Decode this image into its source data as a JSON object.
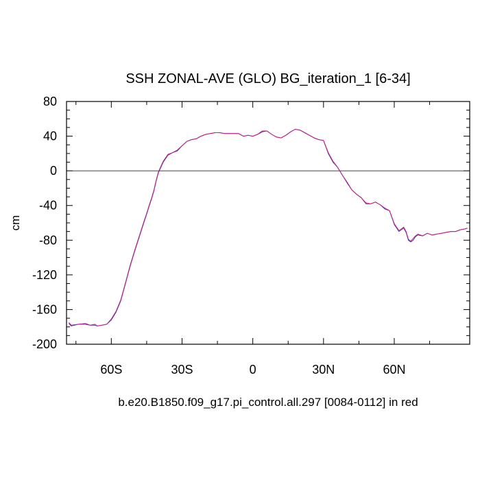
{
  "chart_data": {
    "type": "line",
    "title": "SSH ZONAL-AVE (GLO) BG_iteration_1 [6-34]",
    "subtitle": "b.e20.B1850.f09_g17.pi_control.all.297 [0084-0112] in red",
    "ylabel": "cm",
    "xlabel": "",
    "xlim": [
      -79,
      92
    ],
    "ylim": [
      -200,
      80
    ],
    "x_ticks": [
      {
        "value": -60,
        "label": "60S"
      },
      {
        "value": -30,
        "label": "30S"
      },
      {
        "value": 0,
        "label": "0"
      },
      {
        "value": 30,
        "label": "30N"
      },
      {
        "value": 60,
        "label": "60N"
      }
    ],
    "y_ticks": [
      {
        "value": 80,
        "label": "80"
      },
      {
        "value": 40,
        "label": "40"
      },
      {
        "value": 0,
        "label": "0"
      },
      {
        "value": -40,
        "label": "-40"
      },
      {
        "value": -80,
        "label": "-80"
      },
      {
        "value": -120,
        "label": "-120"
      },
      {
        "value": -160,
        "label": "-160"
      },
      {
        "value": -200,
        "label": "-200"
      }
    ],
    "reference_line": 0,
    "series": [
      {
        "color": "#3a3ad0",
        "x": [
          -78,
          -77,
          -74,
          -71,
          -69,
          -67,
          -66,
          -64,
          -62,
          -60,
          -58,
          -56,
          -54,
          -52,
          -50,
          -48,
          -46,
          -45,
          -44,
          -43,
          -42,
          -41,
          -40,
          -38,
          -36,
          -34,
          -32,
          -30,
          -28,
          -26,
          -24,
          -22,
          -20,
          -18,
          -16,
          -14,
          -12,
          -10,
          -8,
          -6,
          -4,
          -2,
          0,
          2,
          4,
          6,
          8,
          10,
          12,
          14,
          16,
          18,
          20,
          22,
          24,
          26,
          28,
          30,
          32,
          34,
          36,
          38,
          40,
          42,
          44,
          46,
          48,
          50,
          52,
          54,
          56,
          58,
          60,
          62,
          64,
          65,
          66,
          67,
          68,
          69,
          70,
          72,
          74,
          76,
          78,
          80,
          82,
          84,
          86,
          88,
          90,
          91
        ],
        "y": [
          -176,
          -179,
          -177,
          -177,
          -178,
          -178,
          -179,
          -178,
          -177,
          -172,
          -163,
          -150,
          -130,
          -110,
          -92,
          -75,
          -58,
          -50,
          -41,
          -33,
          -24,
          -12,
          -2,
          10,
          18,
          21,
          23,
          29,
          34,
          36,
          37,
          40,
          42,
          43,
          44,
          44,
          43,
          43,
          43,
          43,
          40,
          41,
          40,
          42,
          45,
          46,
          42,
          39,
          38,
          41,
          45,
          48,
          47,
          44,
          41,
          38,
          36,
          35,
          20,
          10,
          4,
          -5,
          -14,
          -22,
          -27,
          -31,
          -38,
          -38,
          -36,
          -39,
          -44,
          -46,
          -62,
          -70,
          -66,
          -71,
          -80,
          -82,
          -80,
          -76,
          -74,
          -75,
          -72,
          -74,
          -73,
          -72,
          -71,
          -70,
          -70,
          -68,
          -67,
          -66
        ]
      },
      {
        "color": "#d2147a",
        "x": [
          -78,
          -77,
          -74,
          -71,
          -69,
          -67,
          -66,
          -64,
          -62,
          -60,
          -58,
          -56,
          -54,
          -52,
          -50,
          -48,
          -46,
          -45,
          -44,
          -43,
          -42,
          -41,
          -40,
          -38,
          -36,
          -34,
          -32,
          -30,
          -28,
          -26,
          -24,
          -22,
          -20,
          -18,
          -16,
          -14,
          -12,
          -10,
          -8,
          -6,
          -4,
          -2,
          0,
          2,
          4,
          6,
          8,
          10,
          12,
          14,
          16,
          18,
          20,
          22,
          24,
          26,
          28,
          30,
          32,
          34,
          36,
          38,
          40,
          42,
          44,
          46,
          48,
          50,
          52,
          54,
          56,
          58,
          60,
          62,
          64,
          65,
          66,
          67,
          68,
          69,
          70,
          72,
          74,
          76,
          78,
          80,
          82,
          84,
          86,
          88,
          90,
          91
        ],
        "y": [
          -175,
          -178,
          -177,
          -176,
          -178,
          -177,
          -179,
          -178,
          -177,
          -171,
          -162,
          -149,
          -129,
          -109,
          -91,
          -74,
          -57,
          -49,
          -40,
          -32,
          -23,
          -11,
          -1,
          11,
          19,
          21,
          24,
          29,
          34,
          36,
          37,
          40,
          42,
          43,
          44,
          44,
          43,
          43,
          43,
          43,
          40,
          41,
          40,
          42,
          46,
          46,
          42,
          39,
          38,
          41,
          45,
          48,
          47,
          44,
          41,
          38,
          36,
          35,
          21,
          11,
          4,
          -5,
          -13,
          -22,
          -27,
          -31,
          -37,
          -38,
          -36,
          -39,
          -43,
          -46,
          -61,
          -69,
          -65,
          -70,
          -79,
          -81,
          -78,
          -75,
          -73,
          -75,
          -72,
          -74,
          -73,
          -72,
          -71,
          -70,
          -70,
          -68,
          -67,
          -66
        ]
      }
    ]
  }
}
